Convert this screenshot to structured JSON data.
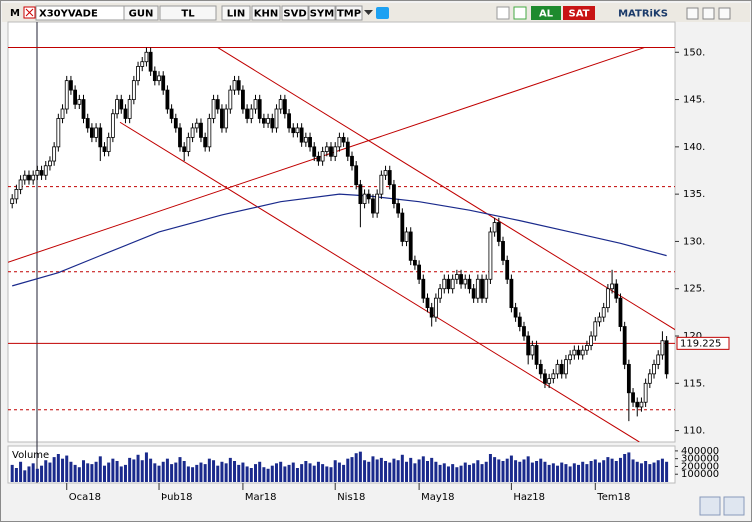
{
  "toolbar": {
    "logo": "M",
    "symbol": "X30YVADE",
    "buttons": [
      "GUN",
      "TL",
      "LIN",
      "KHN",
      "SVD",
      "SYM",
      "TMP"
    ],
    "buy": "AL",
    "sell": "SAT",
    "brand": "MATRiKS"
  },
  "chart_data": {
    "type": "candlestick",
    "up_color": "#ffffff",
    "down_color": "#000000",
    "line_color": "#c00000",
    "xlim": [
      -1,
      158
    ],
    "ylim": [
      108.9,
      153.2
    ],
    "yticks": [
      {
        "value": 110,
        "label": "110."
      },
      {
        "value": 115,
        "label": "115."
      },
      {
        "value": 120,
        "label": "120."
      },
      {
        "value": 125,
        "label": "125."
      },
      {
        "value": 130,
        "label": "130."
      },
      {
        "value": 135,
        "label": "135."
      },
      {
        "value": 140,
        "label": "140."
      },
      {
        "value": 145,
        "label": "145."
      },
      {
        "value": 150,
        "label": "150."
      }
    ],
    "xticks": [
      {
        "value": 13,
        "label": "Oca18"
      },
      {
        "value": 35,
        "label": "Þub18"
      },
      {
        "value": 55,
        "label": "Mar18"
      },
      {
        "value": 77,
        "label": "Nis18"
      },
      {
        "value": 97,
        "label": "May18"
      },
      {
        "value": 119,
        "label": "Haz18"
      },
      {
        "value": 139,
        "label": "Tem18"
      }
    ],
    "last_price": 119.225,
    "candles": [
      [
        134,
        135,
        133.5,
        134.5
      ],
      [
        134.5,
        136,
        134,
        135.5
      ],
      [
        135.5,
        137,
        135,
        136.5
      ],
      [
        136.5,
        137.5,
        136,
        137
      ],
      [
        137,
        137.5,
        136,
        136.5
      ],
      [
        136.5,
        137.5,
        136,
        137
      ],
      [
        137,
        138,
        136.5,
        137.5
      ],
      [
        137.5,
        138,
        136.5,
        137
      ],
      [
        137,
        138.5,
        136.5,
        138
      ],
      [
        138,
        139,
        137.5,
        138.5
      ],
      [
        138.5,
        140.5,
        138,
        140
      ],
      [
        140,
        143.5,
        139.5,
        143
      ],
      [
        143,
        144.5,
        142.5,
        144
      ],
      [
        144,
        147.5,
        143.5,
        147
      ],
      [
        147,
        147.5,
        145.5,
        146
      ],
      [
        146,
        146.5,
        144,
        144.5
      ],
      [
        144.5,
        145.5,
        144,
        145
      ],
      [
        145,
        145.5,
        142.5,
        143
      ],
      [
        143,
        143.5,
        141.5,
        142
      ],
      [
        142,
        142.5,
        140.5,
        141
      ],
      [
        141,
        142.5,
        140.5,
        142
      ],
      [
        142,
        142.5,
        138.5,
        140
      ],
      [
        140,
        140.5,
        139,
        139.5
      ],
      [
        139.5,
        141.5,
        139,
        141
      ],
      [
        141,
        144,
        140.5,
        143.5
      ],
      [
        143.5,
        145.5,
        143,
        145
      ],
      [
        145,
        145.5,
        143.5,
        144
      ],
      [
        144,
        144.5,
        142.5,
        143
      ],
      [
        143,
        145.5,
        142.5,
        145
      ],
      [
        145,
        147.5,
        144.5,
        147
      ],
      [
        147,
        149,
        146.5,
        148.5
      ],
      [
        148.5,
        149.5,
        148,
        149
      ],
      [
        149,
        150.5,
        148.5,
        150
      ],
      [
        150,
        150.5,
        147.5,
        148
      ],
      [
        148,
        148.5,
        146.5,
        147
      ],
      [
        147,
        148,
        146.5,
        147.5
      ],
      [
        147.5,
        148,
        145.5,
        146
      ],
      [
        146,
        146.5,
        143.5,
        144
      ],
      [
        144,
        144.5,
        142.5,
        143
      ],
      [
        143,
        143.5,
        141.5,
        142
      ],
      [
        142,
        142.5,
        139.5,
        140
      ],
      [
        140,
        140.5,
        138.5,
        139.5
      ],
      [
        139.5,
        141.5,
        139,
        141
      ],
      [
        141,
        142.5,
        140.5,
        142
      ],
      [
        142,
        143,
        141.5,
        142.5
      ],
      [
        142.5,
        143,
        140.5,
        141
      ],
      [
        141,
        141.5,
        139.5,
        140
      ],
      [
        140,
        143.5,
        139.5,
        143
      ],
      [
        143,
        145.5,
        142.5,
        145
      ],
      [
        145,
        145.5,
        143.5,
        144
      ],
      [
        144,
        144.5,
        141.5,
        142
      ],
      [
        142,
        144.5,
        141.5,
        144
      ],
      [
        144,
        146.5,
        143.5,
        146
      ],
      [
        146,
        147.5,
        145.5,
        147
      ],
      [
        147,
        147.5,
        145.5,
        146
      ],
      [
        146,
        146.5,
        143.5,
        144
      ],
      [
        144,
        144.5,
        142.5,
        143
      ],
      [
        143,
        144.5,
        142.5,
        144
      ],
      [
        144,
        145.5,
        143.5,
        145
      ],
      [
        145,
        145.5,
        142.5,
        143
      ],
      [
        143,
        143.5,
        142,
        142.5
      ],
      [
        142.5,
        143.5,
        142,
        143
      ],
      [
        143,
        143.5,
        141.5,
        142
      ],
      [
        142,
        144.5,
        141.5,
        144
      ],
      [
        144,
        145.5,
        143.5,
        145
      ],
      [
        145,
        145.5,
        143,
        143.5
      ],
      [
        143.5,
        144,
        141.5,
        142
      ],
      [
        142,
        142.5,
        141,
        141.5
      ],
      [
        141.5,
        142.5,
        141,
        142
      ],
      [
        142,
        142.5,
        140,
        140.5
      ],
      [
        140.5,
        141.5,
        140,
        141
      ],
      [
        141,
        141.5,
        139.5,
        140
      ],
      [
        140,
        140.5,
        138.5,
        139
      ],
      [
        139,
        139.5,
        138,
        138.5
      ],
      [
        138.5,
        140,
        138,
        139.5
      ],
      [
        139.5,
        140.5,
        139,
        140
      ],
      [
        140,
        140.5,
        138.5,
        139
      ],
      [
        139,
        140.5,
        138.5,
        140
      ],
      [
        140,
        141.5,
        139.5,
        141
      ],
      [
        141,
        141.5,
        140,
        140.5
      ],
      [
        140.5,
        141,
        138.5,
        139
      ],
      [
        139,
        139.5,
        137.5,
        138
      ],
      [
        138,
        138.5,
        135.5,
        136
      ],
      [
        136,
        136.5,
        131.5,
        134
      ],
      [
        134,
        135.5,
        133.5,
        135
      ],
      [
        135,
        135.5,
        134,
        134.5
      ],
      [
        134.5,
        135,
        132.5,
        133
      ],
      [
        133,
        135.5,
        132.5,
        135
      ],
      [
        135,
        137.5,
        134.5,
        137
      ],
      [
        137,
        138,
        136.5,
        137.5
      ],
      [
        137.5,
        138,
        135.5,
        136
      ],
      [
        136,
        136.5,
        133.5,
        134
      ],
      [
        134,
        134.5,
        132.5,
        133
      ],
      [
        133,
        133.5,
        129.5,
        130
      ],
      [
        130,
        131.5,
        129.5,
        131
      ],
      [
        131,
        131.5,
        127.5,
        128
      ],
      [
        128,
        128.5,
        127,
        127.5
      ],
      [
        127.5,
        128,
        125.5,
        126
      ],
      [
        126,
        126.5,
        123.5,
        124
      ],
      [
        124,
        124.5,
        122.5,
        123
      ],
      [
        123,
        123.5,
        121,
        122
      ],
      [
        122,
        124.5,
        121.5,
        124
      ],
      [
        124,
        125.5,
        123.5,
        125
      ],
      [
        125,
        126.5,
        124.5,
        126
      ],
      [
        126,
        126.5,
        124.5,
        125
      ],
      [
        125,
        126.5,
        124.5,
        126
      ],
      [
        126,
        127,
        125.5,
        126.5
      ],
      [
        126.5,
        127,
        125,
        125.5
      ],
      [
        125.5,
        126.5,
        125,
        126
      ],
      [
        126,
        126.5,
        124.5,
        125
      ],
      [
        125,
        125.5,
        123.5,
        124
      ],
      [
        124,
        126.5,
        123.5,
        126
      ],
      [
        126,
        126.5,
        123.5,
        124
      ],
      [
        124,
        126.5,
        123.5,
        126
      ],
      [
        126,
        131.5,
        125.5,
        131
      ],
      [
        131,
        132.5,
        130.5,
        132
      ],
      [
        132,
        132.5,
        129.5,
        130
      ],
      [
        130,
        130.5,
        127.5,
        128
      ],
      [
        128,
        128.5,
        125.5,
        126
      ],
      [
        126,
        126.5,
        122.5,
        123
      ],
      [
        123,
        123.5,
        121.5,
        122
      ],
      [
        122,
        122.5,
        120.5,
        121
      ],
      [
        121,
        121.5,
        119.5,
        120
      ],
      [
        120,
        120.5,
        117,
        118
      ],
      [
        118,
        119.5,
        117.5,
        119
      ],
      [
        119,
        119.5,
        116.5,
        117
      ],
      [
        117,
        117.5,
        115.5,
        116
      ],
      [
        116,
        116.5,
        114.5,
        115
      ],
      [
        115,
        116,
        114.5,
        115.5
      ],
      [
        115.5,
        116.5,
        115,
        116
      ],
      [
        116,
        117.5,
        115.5,
        117
      ],
      [
        117,
        117.5,
        115.5,
        116
      ],
      [
        116,
        118,
        115.5,
        117.5
      ],
      [
        117.5,
        118.5,
        117,
        118
      ],
      [
        118,
        119,
        117.5,
        118.5
      ],
      [
        118.5,
        119,
        117.5,
        118
      ],
      [
        118,
        119,
        117.5,
        118.5
      ],
      [
        118.5,
        119.5,
        118,
        119
      ],
      [
        119,
        120.5,
        118.5,
        120
      ],
      [
        120,
        122,
        119.5,
        121.5
      ],
      [
        121.5,
        122.5,
        121,
        122
      ],
      [
        122,
        123.5,
        121.5,
        123
      ],
      [
        123,
        125.5,
        122.5,
        125
      ],
      [
        125,
        127,
        124.5,
        125.5
      ],
      [
        125.5,
        126,
        123.5,
        124
      ],
      [
        124,
        124.5,
        120.5,
        121
      ],
      [
        121,
        121.5,
        116.5,
        117
      ],
      [
        117,
        117.5,
        111,
        114
      ],
      [
        114,
        114.5,
        112.5,
        113
      ],
      [
        113,
        113.5,
        111.5,
        112.5
      ],
      [
        112.5,
        113.5,
        112,
        113
      ],
      [
        113,
        115.5,
        112.5,
        115
      ],
      [
        115,
        116.5,
        114.5,
        116
      ],
      [
        116,
        117.5,
        115.5,
        117
      ],
      [
        117,
        118.5,
        116.5,
        118
      ],
      [
        118,
        120.5,
        117.5,
        119.5
      ],
      [
        119.5,
        120,
        115.5,
        116
      ]
    ],
    "ma": {
      "color": "#1a2a8c",
      "x": [
        0,
        11,
        21,
        35,
        50,
        64,
        78,
        85,
        97,
        109,
        121,
        133,
        145,
        156
      ],
      "values": [
        125.3,
        126.7,
        128.5,
        131,
        132.8,
        134.2,
        135,
        134.8,
        134.2,
        133.3,
        132.2,
        131,
        129.8,
        128.5
      ]
    },
    "levels": [
      {
        "value": 150.5,
        "style": "solid"
      },
      {
        "value": 119.225,
        "style": "solid"
      },
      {
        "value": 135.8,
        "style": "dashed"
      },
      {
        "value": 126.8,
        "style": "dashed"
      },
      {
        "value": 112.2,
        "style": "dashed"
      }
    ],
    "trendlines": [
      {
        "x": [
          -1,
          150.7
        ],
        "y": [
          127.8,
          150.5
        ]
      },
      {
        "x": [
          49,
          159
        ],
        "y": [
          150.5,
          120.4
        ]
      },
      {
        "x": [
          25.7,
          149.5
        ],
        "y": [
          142.6,
          108.8
        ]
      }
    ],
    "volume": {
      "label": "Volume",
      "color": "#1a2a8c",
      "ylim": [
        0,
        450000
      ],
      "yticks": [
        100000,
        200000,
        300000,
        400000
      ],
      "values": [
        220000,
        180000,
        260000,
        150000,
        200000,
        240000,
        170000,
        210000,
        280000,
        250000,
        320000,
        360000,
        300000,
        340000,
        260000,
        220000,
        190000,
        280000,
        240000,
        230000,
        260000,
        330000,
        210000,
        250000,
        300000,
        270000,
        200000,
        220000,
        310000,
        290000,
        350000,
        280000,
        380000,
        300000,
        240000,
        210000,
        260000,
        300000,
        230000,
        250000,
        320000,
        270000,
        200000,
        190000,
        220000,
        250000,
        230000,
        300000,
        280000,
        210000,
        260000,
        240000,
        310000,
        270000,
        220000,
        250000,
        200000,
        180000,
        230000,
        260000,
        190000,
        170000,
        210000,
        240000,
        260000,
        200000,
        220000,
        250000,
        180000,
        230000,
        270000,
        240000,
        210000,
        260000,
        230000,
        200000,
        190000,
        280000,
        250000,
        220000,
        300000,
        320000,
        370000,
        390000,
        280000,
        260000,
        330000,
        290000,
        310000,
        270000,
        250000,
        300000,
        280000,
        350000,
        260000,
        310000,
        240000,
        290000,
        330000,
        270000,
        310000,
        260000,
        220000,
        240000,
        200000,
        230000,
        190000,
        210000,
        250000,
        220000,
        240000,
        280000,
        230000,
        260000,
        360000,
        320000,
        290000,
        270000,
        300000,
        340000,
        280000,
        260000,
        290000,
        330000,
        250000,
        270000,
        300000,
        260000,
        220000,
        240000,
        210000,
        250000,
        230000,
        200000,
        240000,
        220000,
        260000,
        230000,
        270000,
        290000,
        250000,
        280000,
        320000,
        300000,
        270000,
        310000,
        360000,
        380000,
        290000,
        260000,
        240000,
        270000,
        230000,
        250000,
        280000,
        300000,
        260000
      ]
    }
  }
}
